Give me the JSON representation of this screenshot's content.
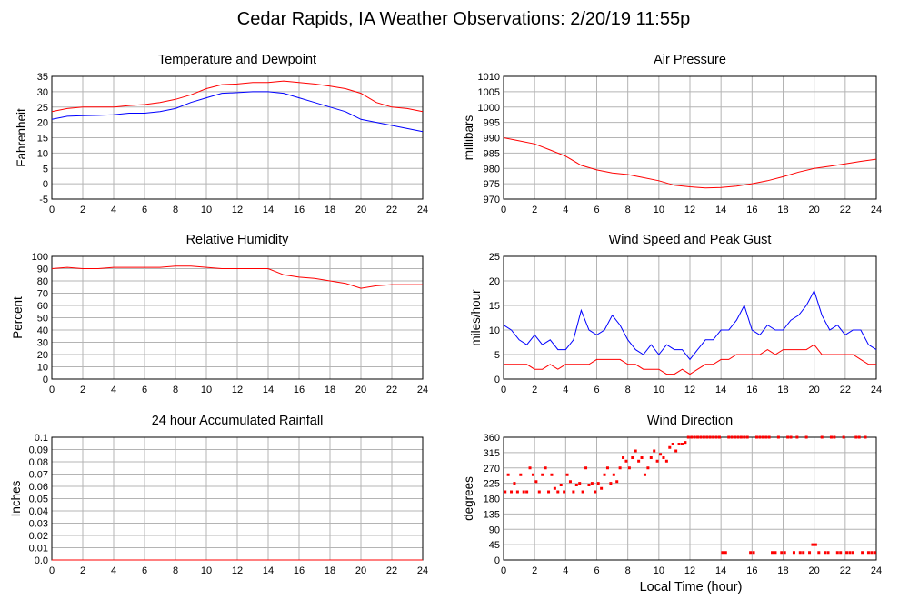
{
  "page": {
    "title": "Cedar Rapids, IA Weather Observations: 2/20/19 11:55p",
    "x_axis_label": "Local Time (hour)"
  },
  "chart_data": [
    {
      "id": "temp",
      "type": "line",
      "title": "Temperature and Dewpoint",
      "ylabel": "Fahrenheit",
      "xlabel": "",
      "xlim": [
        0,
        24
      ],
      "ylim": [
        -5,
        35
      ],
      "x_ticks": [
        0,
        2,
        4,
        6,
        8,
        10,
        12,
        14,
        16,
        18,
        20,
        22,
        24
      ],
      "y_ticks": [
        -5,
        0,
        5,
        10,
        15,
        20,
        25,
        30,
        35
      ],
      "grid": true,
      "series": [
        {
          "color": "#ff0000",
          "x": [
            0,
            1,
            2,
            3,
            4,
            5,
            6,
            7,
            8,
            9,
            10,
            11,
            12,
            13,
            14,
            15,
            16,
            17,
            18,
            19,
            20,
            21,
            22,
            23,
            24
          ],
          "values": [
            23.5,
            24.5,
            25,
            25,
            25,
            25.5,
            25.8,
            26.5,
            27.5,
            29,
            31,
            32.3,
            32.5,
            33,
            33,
            33.5,
            33,
            32.5,
            31.8,
            31,
            29.5,
            26.5,
            25,
            24.5,
            23.5
          ]
        },
        {
          "color": "#0000ff",
          "x": [
            0,
            1,
            2,
            3,
            4,
            5,
            6,
            7,
            8,
            9,
            10,
            11,
            12,
            13,
            14,
            15,
            16,
            17,
            18,
            19,
            20,
            21,
            22,
            23,
            24
          ],
          "values": [
            21,
            22,
            22.2,
            22.3,
            22.5,
            23,
            23,
            23.5,
            24.5,
            26.5,
            28,
            29.5,
            29.7,
            30,
            30,
            29.5,
            28,
            26.5,
            25,
            23.5,
            21,
            20,
            19,
            18,
            17
          ]
        }
      ]
    },
    {
      "id": "pressure",
      "type": "line",
      "title": "Air Pressure",
      "ylabel": "millibars",
      "xlabel": "",
      "xlim": [
        0,
        24
      ],
      "ylim": [
        970,
        1010
      ],
      "x_ticks": [
        0,
        2,
        4,
        6,
        8,
        10,
        12,
        14,
        16,
        18,
        20,
        22,
        24
      ],
      "y_ticks": [
        970,
        975,
        980,
        985,
        990,
        995,
        1000,
        1005,
        1010
      ],
      "grid": true,
      "series": [
        {
          "color": "#ff0000",
          "x": [
            0,
            1,
            2,
            3,
            4,
            5,
            6,
            7,
            8,
            9,
            10,
            11,
            12,
            13,
            14,
            15,
            16,
            17,
            18,
            19,
            20,
            21,
            22,
            23,
            24
          ],
          "values": [
            990,
            989,
            988,
            986,
            984,
            981,
            979.5,
            978.5,
            978,
            977,
            976,
            974.5,
            974,
            973.6,
            973.8,
            974.2,
            975,
            976,
            977.3,
            978.8,
            980,
            980.7,
            981.5,
            982.3,
            983
          ]
        }
      ]
    },
    {
      "id": "rh",
      "type": "line",
      "title": "Relative Humidity",
      "ylabel": "Percent",
      "xlabel": "",
      "xlim": [
        0,
        24
      ],
      "ylim": [
        0,
        100
      ],
      "x_ticks": [
        0,
        2,
        4,
        6,
        8,
        10,
        12,
        14,
        16,
        18,
        20,
        22,
        24
      ],
      "y_ticks": [
        0,
        10,
        20,
        30,
        40,
        50,
        60,
        70,
        80,
        90,
        100
      ],
      "grid": true,
      "series": [
        {
          "color": "#ff0000",
          "x": [
            0,
            1,
            2,
            3,
            4,
            5,
            6,
            7,
            8,
            9,
            10,
            11,
            12,
            13,
            14,
            15,
            16,
            17,
            18,
            19,
            20,
            21,
            22,
            23,
            24
          ],
          "values": [
            90,
            91,
            90,
            90,
            91,
            91,
            91,
            91,
            92,
            92,
            91,
            90,
            90,
            90,
            90,
            85,
            83,
            82,
            80,
            78,
            74,
            76,
            77,
            77,
            77
          ]
        }
      ]
    },
    {
      "id": "wind",
      "type": "line",
      "title": "Wind Speed and Peak Gust",
      "ylabel": "miles/hour",
      "xlabel": "",
      "xlim": [
        0,
        24
      ],
      "ylim": [
        0,
        25
      ],
      "x_ticks": [
        0,
        2,
        4,
        6,
        8,
        10,
        12,
        14,
        16,
        18,
        20,
        22,
        24
      ],
      "y_ticks": [
        0,
        5,
        10,
        15,
        20,
        25
      ],
      "grid": true,
      "series": [
        {
          "color": "#0000ff",
          "x": [
            0,
            0.5,
            1,
            1.5,
            2,
            2.5,
            3,
            3.5,
            4,
            4.5,
            5,
            5.5,
            6,
            6.5,
            7,
            7.5,
            8,
            8.5,
            9,
            9.5,
            10,
            10.5,
            11,
            11.5,
            12,
            12.5,
            13,
            13.5,
            14,
            14.5,
            15,
            15.5,
            16,
            16.5,
            17,
            17.5,
            18,
            18.5,
            19,
            19.5,
            20,
            20.5,
            21,
            21.5,
            22,
            22.5,
            23,
            23.5,
            24
          ],
          "values": [
            11,
            10,
            8,
            7,
            9,
            7,
            8,
            6,
            6,
            8,
            14,
            10,
            9,
            10,
            13,
            11,
            8,
            6,
            5,
            7,
            5,
            7,
            6,
            6,
            4,
            6,
            8,
            8,
            10,
            10,
            12,
            15,
            10,
            9,
            11,
            10,
            10,
            12,
            13,
            15,
            18,
            13,
            10,
            11,
            9,
            10,
            10,
            7,
            6
          ]
        },
        {
          "color": "#ff0000",
          "x": [
            0,
            0.5,
            1,
            1.5,
            2,
            2.5,
            3,
            3.5,
            4,
            4.5,
            5,
            5.5,
            6,
            6.5,
            7,
            7.5,
            8,
            8.5,
            9,
            9.5,
            10,
            10.5,
            11,
            11.5,
            12,
            12.5,
            13,
            13.5,
            14,
            14.5,
            15,
            15.5,
            16,
            16.5,
            17,
            17.5,
            18,
            18.5,
            19,
            19.5,
            20,
            20.5,
            21,
            21.5,
            22,
            22.5,
            23,
            23.5,
            24
          ],
          "values": [
            3,
            3,
            3,
            3,
            2,
            2,
            3,
            2,
            3,
            3,
            3,
            3,
            4,
            4,
            4,
            4,
            3,
            3,
            2,
            2,
            2,
            1,
            1,
            2,
            1,
            2,
            3,
            3,
            4,
            4,
            5,
            5,
            5,
            5,
            6,
            5,
            6,
            6,
            6,
            6,
            7,
            5,
            5,
            5,
            5,
            5,
            4,
            3,
            3
          ]
        }
      ]
    },
    {
      "id": "rain",
      "type": "line",
      "title": "24 hour Accumulated Rainfall",
      "ylabel": "Inches",
      "xlabel": "",
      "xlim": [
        0,
        24
      ],
      "ylim": [
        0,
        0.1
      ],
      "x_ticks": [
        0,
        2,
        4,
        6,
        8,
        10,
        12,
        14,
        16,
        18,
        20,
        22,
        24
      ],
      "y_ticks": [
        0.0,
        0.01,
        0.02,
        0.03,
        0.04,
        0.05,
        0.06,
        0.07,
        0.08,
        0.09,
        0.1
      ],
      "y_tick_labels": [
        "0.0",
        "0.01",
        "0.02",
        "0.03",
        "0.04",
        "0.05",
        "0.06",
        "0.07",
        "0.08",
        "0.09",
        "0.1"
      ],
      "grid": true,
      "series": [
        {
          "color": "#ff0000",
          "x": [
            0,
            24
          ],
          "values": [
            0,
            0
          ]
        }
      ]
    },
    {
      "id": "winddir",
      "type": "scatter",
      "title": "Wind Direction",
      "ylabel": "degrees",
      "xlabel": "Local Time (hour)",
      "xlim": [
        0,
        24
      ],
      "ylim": [
        0,
        360
      ],
      "x_ticks": [
        0,
        2,
        4,
        6,
        8,
        10,
        12,
        14,
        16,
        18,
        20,
        22,
        24
      ],
      "y_ticks": [
        0,
        45,
        90,
        135,
        180,
        225,
        270,
        315,
        360
      ],
      "grid": true,
      "series": [
        {
          "color": "#ff0000",
          "x": [
            0.1,
            0.3,
            0.5,
            0.7,
            0.9,
            1.1,
            1.3,
            1.5,
            1.7,
            1.9,
            2.1,
            2.3,
            2.5,
            2.7,
            2.9,
            3.1,
            3.3,
            3.5,
            3.7,
            3.9,
            4.1,
            4.3,
            4.5,
            4.7,
            4.9,
            5.1,
            5.3,
            5.5,
            5.7,
            5.9,
            6.1,
            6.3,
            6.5,
            6.7,
            6.9,
            7.1,
            7.3,
            7.5,
            7.7,
            7.9,
            8.1,
            8.3,
            8.5,
            8.7,
            8.9,
            9.1,
            9.3,
            9.5,
            9.7,
            9.9,
            10.1,
            10.3,
            10.5,
            10.7,
            10.9,
            11.1,
            11.3,
            11.5,
            11.7,
            11.9,
            12.1,
            12.3,
            12.5,
            12.7,
            12.9,
            13.1,
            13.3,
            13.5,
            13.7,
            13.9,
            14.1,
            14.3,
            14.5,
            14.7,
            14.9,
            15.1,
            15.3,
            15.5,
            15.7,
            15.9,
            16.1,
            16.3,
            16.5,
            16.7,
            16.9,
            17.1,
            17.3,
            17.5,
            17.7,
            17.9,
            18.1,
            18.3,
            18.5,
            18.7,
            18.9,
            19.1,
            19.3,
            19.5,
            19.7,
            19.9,
            20.1,
            20.3,
            20.5,
            20.7,
            20.9,
            21.1,
            21.3,
            21.5,
            21.7,
            21.9,
            22.1,
            22.3,
            22.5,
            22.7,
            22.9,
            23.1,
            23.3,
            23.5,
            23.7,
            23.9
          ],
          "values": [
            200,
            250,
            200,
            225,
            200,
            250,
            200,
            200,
            270,
            250,
            230,
            200,
            250,
            270,
            200,
            250,
            210,
            200,
            220,
            200,
            250,
            230,
            200,
            220,
            225,
            200,
            270,
            220,
            225,
            200,
            225,
            210,
            250,
            270,
            225,
            250,
            230,
            270,
            300,
            290,
            270,
            300,
            320,
            290,
            300,
            250,
            270,
            300,
            320,
            290,
            310,
            300,
            290,
            330,
            340,
            320,
            340,
            340,
            345,
            360,
            360,
            360,
            360,
            360,
            360,
            360,
            360,
            360,
            360,
            360,
            22,
            22,
            360,
            360,
            360,
            360,
            360,
            360,
            360,
            22,
            22,
            360,
            360,
            360,
            360,
            360,
            22,
            22,
            360,
            22,
            22,
            360,
            360,
            22,
            360,
            22,
            22,
            360,
            22,
            45,
            45,
            22,
            360,
            22,
            22,
            360,
            360,
            22,
            22,
            360,
            22,
            22,
            22,
            360,
            360,
            22,
            360,
            22,
            22,
            22
          ]
        }
      ]
    }
  ]
}
